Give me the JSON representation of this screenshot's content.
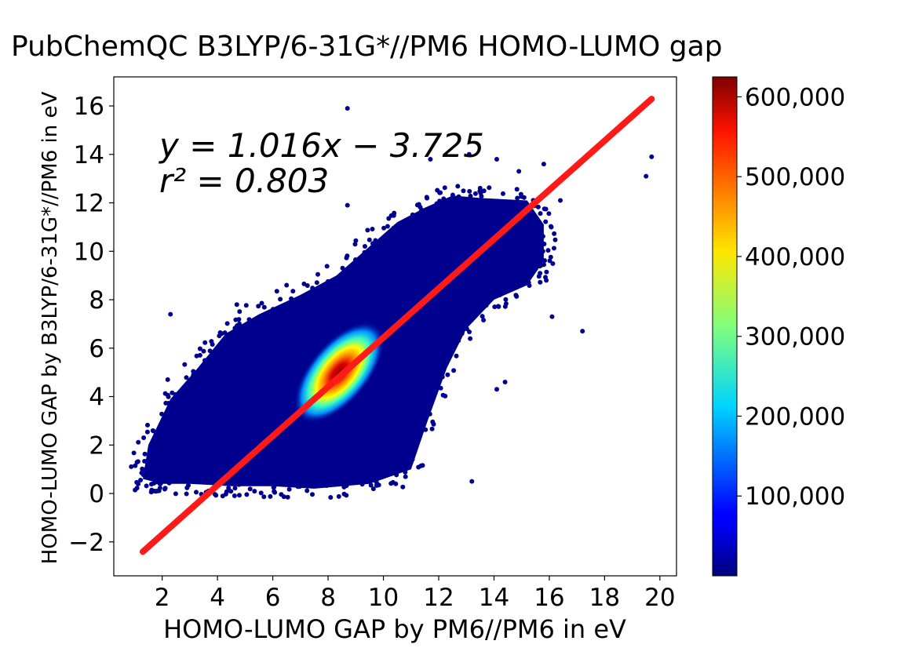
{
  "chart_data": {
    "type": "scatter",
    "title": "PubChemQC B3LYP/6-31G*//PM6 HOMO-LUMO gap",
    "xlabel": "HOMO-LUMO GAP by PM6//PM6 in eV",
    "ylabel": "HOMO-LUMO GAP by B3LYP/6-31G*//PM6 in eV",
    "xlim": [
      0.25,
      20.6
    ],
    "ylim": [
      -3.4,
      17.2
    ],
    "xticks": [
      2,
      4,
      6,
      8,
      10,
      12,
      14,
      16,
      18,
      20
    ],
    "xtick_labels": [
      "2",
      "4",
      "6",
      "8",
      "10",
      "12",
      "14",
      "16",
      "18",
      "20"
    ],
    "yticks": [
      -2,
      0,
      2,
      4,
      6,
      8,
      10,
      12,
      14,
      16
    ],
    "ytick_labels": [
      "−2",
      "0",
      "2",
      "4",
      "6",
      "8",
      "10",
      "12",
      "14",
      "16"
    ],
    "grid": false,
    "regression": {
      "slope": 1.016,
      "intercept": -3.725,
      "r2": 0.803,
      "x_range": [
        1.3,
        19.7
      ],
      "color": "#ff1a1a",
      "equation_label": "y = 1.016x − 3.725",
      "r2_label": "r² = 0.803"
    },
    "density": {
      "colormap": "jet",
      "core_center": [
        8.4,
        5.0
      ],
      "core_max": 620000,
      "cloud_color": "#00008f"
    },
    "outliers": [
      [
        2.3,
        7.4
      ],
      [
        2.2,
        4.7
      ],
      [
        4.7,
        7.8
      ],
      [
        6.5,
        8.6
      ],
      [
        7.6,
        8.3
      ],
      [
        8.7,
        11.9
      ],
      [
        8.7,
        15.9
      ],
      [
        11.7,
        13.8
      ],
      [
        13.1,
        14.0
      ],
      [
        14.1,
        13.8
      ],
      [
        14.9,
        13.3
      ],
      [
        15.8,
        13.6
      ],
      [
        16.4,
        12.1
      ],
      [
        17.2,
        6.7
      ],
      [
        16.1,
        7.3
      ],
      [
        19.5,
        13.1
      ],
      [
        19.7,
        13.9
      ],
      [
        13.2,
        0.5
      ],
      [
        14.4,
        4.6
      ],
      [
        14.1,
        4.3
      ]
    ],
    "colorbar": {
      "min": 0,
      "max": 625000,
      "ticks": [
        100000,
        200000,
        300000,
        400000,
        500000,
        600000
      ],
      "tick_labels": [
        "100,000",
        "200,000",
        "300,000",
        "400,000",
        "500,000",
        "600,000"
      ],
      "colormap": "jet"
    }
  }
}
